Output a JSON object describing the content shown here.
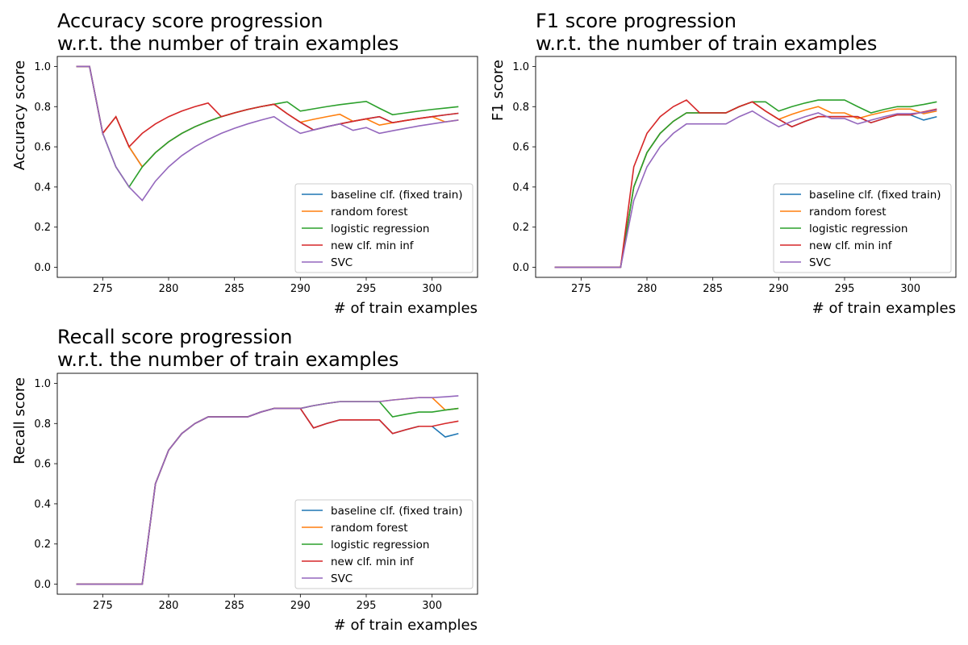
{
  "colors": {
    "baseline": "#1f77b4",
    "rf": "#ff7f0e",
    "lr": "#2ca02c",
    "minf": "#d62728",
    "svc": "#9467bd"
  },
  "chart_data": [
    {
      "type": "line",
      "title_line1": "Accuracy score progression",
      "title_line2": "w.r.t. the number of train examples",
      "xlabel": "# of train examples",
      "ylabel": "Accuracy score",
      "xlim": [
        271.55,
        303.45
      ],
      "ylim": [
        -0.05,
        1.05
      ],
      "xticks": [
        "275",
        "280",
        "285",
        "290",
        "295",
        "300"
      ],
      "yticks": [
        "0.0",
        "0.2",
        "0.4",
        "0.6",
        "0.8",
        "1.0"
      ],
      "grid": false,
      "legend_position": "lower right",
      "x": [
        273,
        274,
        275,
        276,
        277,
        278,
        279,
        280,
        281,
        282,
        283,
        284,
        285,
        286,
        287,
        288,
        289,
        290,
        291,
        292,
        293,
        294,
        295,
        296,
        297,
        298,
        299,
        300,
        301,
        302
      ],
      "series": [
        {
          "name": "baseline clf. (fixed train)",
          "color_key": "baseline",
          "values": [
            1.0,
            1.0,
            0.667,
            0.75,
            0.6,
            0.5,
            0.571,
            0.625,
            0.667,
            0.7,
            0.727,
            0.75,
            0.769,
            0.786,
            0.8,
            0.812,
            0.765,
            0.722,
            0.684,
            0.7,
            0.714,
            0.727,
            0.739,
            0.75,
            0.72,
            0.731,
            0.741,
            0.75,
            0.759,
            0.767
          ]
        },
        {
          "name": "random forest",
          "color_key": "rf",
          "values": [
            1.0,
            1.0,
            0.667,
            0.75,
            0.6,
            0.5,
            0.571,
            0.625,
            0.667,
            0.7,
            0.727,
            0.75,
            0.769,
            0.786,
            0.8,
            0.812,
            0.765,
            0.722,
            0.737,
            0.75,
            0.762,
            0.727,
            0.739,
            0.708,
            0.72,
            0.731,
            0.741,
            0.75,
            0.724,
            0.733
          ]
        },
        {
          "name": "logistic regression",
          "color_key": "lr",
          "values": [
            1.0,
            1.0,
            0.667,
            0.5,
            0.4,
            0.5,
            0.571,
            0.625,
            0.667,
            0.7,
            0.727,
            0.75,
            0.769,
            0.786,
            0.8,
            0.812,
            0.824,
            0.778,
            0.789,
            0.8,
            0.81,
            0.818,
            0.826,
            0.792,
            0.76,
            0.769,
            0.778,
            0.786,
            0.793,
            0.8
          ]
        },
        {
          "name": "new clf. min inf",
          "color_key": "minf",
          "values": [
            1.0,
            1.0,
            0.667,
            0.75,
            0.6,
            0.667,
            0.714,
            0.75,
            0.778,
            0.8,
            0.818,
            0.75,
            0.769,
            0.786,
            0.8,
            0.812,
            0.765,
            0.722,
            0.684,
            0.7,
            0.714,
            0.727,
            0.739,
            0.75,
            0.72,
            0.731,
            0.741,
            0.75,
            0.759,
            0.767
          ]
        },
        {
          "name": "SVC",
          "color_key": "svc",
          "values": [
            1.0,
            1.0,
            0.667,
            0.5,
            0.4,
            0.333,
            0.429,
            0.5,
            0.556,
            0.6,
            0.636,
            0.667,
            0.692,
            0.714,
            0.733,
            0.75,
            0.706,
            0.667,
            0.684,
            0.7,
            0.714,
            0.682,
            0.696,
            0.667,
            0.68,
            0.692,
            0.704,
            0.714,
            0.724,
            0.733
          ]
        }
      ]
    },
    {
      "type": "line",
      "title_line1": "F1 score progression",
      "title_line2": "w.r.t. the number of train examples",
      "xlabel": "# of train examples",
      "ylabel": "F1 score",
      "xlim": [
        271.55,
        303.45
      ],
      "ylim": [
        -0.05,
        1.05
      ],
      "xticks": [
        "275",
        "280",
        "285",
        "290",
        "295",
        "300"
      ],
      "yticks": [
        "0.0",
        "0.2",
        "0.4",
        "0.6",
        "0.8",
        "1.0"
      ],
      "grid": false,
      "legend_position": "lower right",
      "x": [
        273,
        274,
        275,
        276,
        277,
        278,
        279,
        280,
        281,
        282,
        283,
        284,
        285,
        286,
        287,
        288,
        289,
        290,
        291,
        292,
        293,
        294,
        295,
        296,
        297,
        298,
        299,
        300,
        301,
        302
      ],
      "series": [
        {
          "name": "baseline clf. (fixed train)",
          "color_key": "baseline",
          "values": [
            0.0,
            0.0,
            0.0,
            0.0,
            0.0,
            0.0,
            0.4,
            0.571,
            0.667,
            0.727,
            0.769,
            0.769,
            0.769,
            0.769,
            0.8,
            0.824,
            0.778,
            0.737,
            0.7,
            0.727,
            0.75,
            0.75,
            0.75,
            0.75,
            0.72,
            0.741,
            0.759,
            0.759,
            0.733,
            0.75
          ]
        },
        {
          "name": "random forest",
          "color_key": "rf",
          "values": [
            0.0,
            0.0,
            0.0,
            0.0,
            0.0,
            0.0,
            0.4,
            0.571,
            0.667,
            0.727,
            0.769,
            0.769,
            0.769,
            0.769,
            0.8,
            0.824,
            0.778,
            0.737,
            0.762,
            0.783,
            0.8,
            0.769,
            0.769,
            0.741,
            0.759,
            0.774,
            0.788,
            0.788,
            0.765,
            0.778
          ]
        },
        {
          "name": "logistic regression",
          "color_key": "lr",
          "values": [
            0.0,
            0.0,
            0.0,
            0.0,
            0.0,
            0.0,
            0.4,
            0.571,
            0.667,
            0.727,
            0.769,
            0.769,
            0.769,
            0.769,
            0.8,
            0.824,
            0.824,
            0.778,
            0.8,
            0.818,
            0.833,
            0.833,
            0.833,
            0.8,
            0.769,
            0.786,
            0.8,
            0.8,
            0.811,
            0.824
          ]
        },
        {
          "name": "new clf. min inf",
          "color_key": "minf",
          "values": [
            0.0,
            0.0,
            0.0,
            0.0,
            0.0,
            0.0,
            0.5,
            0.667,
            0.75,
            0.8,
            0.833,
            0.769,
            0.769,
            0.769,
            0.8,
            0.824,
            0.778,
            0.737,
            0.7,
            0.727,
            0.75,
            0.75,
            0.75,
            0.75,
            0.72,
            0.741,
            0.759,
            0.759,
            0.774,
            0.788
          ]
        },
        {
          "name": "SVC",
          "color_key": "svc",
          "values": [
            0.0,
            0.0,
            0.0,
            0.0,
            0.0,
            0.0,
            0.333,
            0.5,
            0.6,
            0.667,
            0.714,
            0.714,
            0.714,
            0.714,
            0.75,
            0.778,
            0.737,
            0.7,
            0.727,
            0.75,
            0.769,
            0.741,
            0.741,
            0.714,
            0.733,
            0.75,
            0.765,
            0.765,
            0.771,
            0.784
          ]
        }
      ]
    },
    {
      "type": "line",
      "title_line1": "Recall score progression",
      "title_line2": "w.r.t. the number of train examples",
      "xlabel": "# of train examples",
      "ylabel": "Recall score",
      "xlim": [
        271.55,
        303.45
      ],
      "ylim": [
        -0.05,
        1.05
      ],
      "xticks": [
        "275",
        "280",
        "285",
        "290",
        "295",
        "300"
      ],
      "yticks": [
        "0.0",
        "0.2",
        "0.4",
        "0.6",
        "0.8",
        "1.0"
      ],
      "grid": false,
      "legend_position": "lower right",
      "x": [
        273,
        274,
        275,
        276,
        277,
        278,
        279,
        280,
        281,
        282,
        283,
        284,
        285,
        286,
        287,
        288,
        289,
        290,
        291,
        292,
        293,
        294,
        295,
        296,
        297,
        298,
        299,
        300,
        301,
        302
      ],
      "series": [
        {
          "name": "baseline clf. (fixed train)",
          "color_key": "baseline",
          "values": [
            0.0,
            0.0,
            0.0,
            0.0,
            0.0,
            0.0,
            0.5,
            0.667,
            0.75,
            0.8,
            0.833,
            0.833,
            0.833,
            0.833,
            0.857,
            0.875,
            0.875,
            0.875,
            0.778,
            0.8,
            0.818,
            0.818,
            0.818,
            0.818,
            0.75,
            0.769,
            0.786,
            0.786,
            0.733,
            0.75
          ]
        },
        {
          "name": "random forest",
          "color_key": "rf",
          "values": [
            0.0,
            0.0,
            0.0,
            0.0,
            0.0,
            0.0,
            0.5,
            0.667,
            0.75,
            0.8,
            0.833,
            0.833,
            0.833,
            0.833,
            0.857,
            0.875,
            0.875,
            0.875,
            0.889,
            0.9,
            0.909,
            0.909,
            0.909,
            0.909,
            0.917,
            0.923,
            0.929,
            0.929,
            0.867,
            0.875
          ]
        },
        {
          "name": "logistic regression",
          "color_key": "lr",
          "values": [
            0.0,
            0.0,
            0.0,
            0.0,
            0.0,
            0.0,
            0.5,
            0.667,
            0.75,
            0.8,
            0.833,
            0.833,
            0.833,
            0.833,
            0.857,
            0.875,
            0.875,
            0.875,
            0.889,
            0.9,
            0.909,
            0.909,
            0.909,
            0.909,
            0.833,
            0.846,
            0.857,
            0.857,
            0.867,
            0.875
          ]
        },
        {
          "name": "new clf. min inf",
          "color_key": "minf",
          "values": [
            0.0,
            0.0,
            0.0,
            0.0,
            0.0,
            0.0,
            0.5,
            0.667,
            0.75,
            0.8,
            0.833,
            0.833,
            0.833,
            0.833,
            0.857,
            0.875,
            0.875,
            0.875,
            0.778,
            0.8,
            0.818,
            0.818,
            0.818,
            0.818,
            0.75,
            0.769,
            0.786,
            0.786,
            0.8,
            0.812
          ]
        },
        {
          "name": "SVC",
          "color_key": "svc",
          "values": [
            0.0,
            0.0,
            0.0,
            0.0,
            0.0,
            0.0,
            0.5,
            0.667,
            0.75,
            0.8,
            0.833,
            0.833,
            0.833,
            0.833,
            0.857,
            0.875,
            0.875,
            0.875,
            0.889,
            0.9,
            0.909,
            0.909,
            0.909,
            0.909,
            0.917,
            0.923,
            0.929,
            0.929,
            0.933,
            0.938
          ]
        }
      ]
    }
  ]
}
